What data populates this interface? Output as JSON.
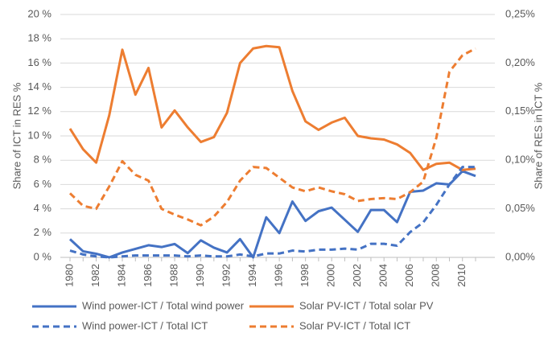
{
  "chart_data": {
    "type": "line",
    "y_label": "Share of ICT in RES %",
    "y2_label": "Share of RES in ICT %",
    "x": [
      1980,
      1981,
      1982,
      1983,
      1984,
      1985,
      1986,
      1987,
      1988,
      1989,
      1990,
      1991,
      1992,
      1993,
      1994,
      1995,
      1996,
      1997,
      1998,
      1999,
      2000,
      2001,
      2002,
      2003,
      2004,
      2005,
      2006,
      2007,
      2008,
      2009,
      2010,
      2011
    ],
    "xlim": [
      1980,
      2011
    ],
    "xticks": [
      1980,
      1982,
      1984,
      1986,
      1988,
      1990,
      1992,
      1994,
      1996,
      1998,
      2000,
      2002,
      2004,
      2006,
      2008,
      2010
    ],
    "ylim": [
      0,
      20
    ],
    "yticks": [
      {
        "value": 0,
        "label": "0 %"
      },
      {
        "value": 2,
        "label": "2 %"
      },
      {
        "value": 4,
        "label": "4 %"
      },
      {
        "value": 6,
        "label": "6 %"
      },
      {
        "value": 8,
        "label": "8 %"
      },
      {
        "value": 10,
        "label": "10 %"
      },
      {
        "value": 12,
        "label": "12 %"
      },
      {
        "value": 14,
        "label": "14 %"
      },
      {
        "value": 16,
        "label": "16 %"
      },
      {
        "value": 18,
        "label": "18 %"
      },
      {
        "value": 20,
        "label": "20 %"
      }
    ],
    "y2lim": [
      0,
      0.25
    ],
    "y2ticks": [
      {
        "value": 0,
        "label": "0,00%"
      },
      {
        "value": 0.05,
        "label": "0,05%"
      },
      {
        "value": 0.1,
        "label": "0,10%"
      },
      {
        "value": 0.15,
        "label": "0,15%"
      },
      {
        "value": 0.2,
        "label": "0,20%"
      },
      {
        "value": 0.25,
        "label": "0,25%"
      }
    ],
    "grid": true,
    "legend": "bottom",
    "series": [
      {
        "name": "Wind power-ICT / Total wind power",
        "color": "#4472c4",
        "dash": false,
        "values": [
          1.5,
          0.5,
          0.3,
          0.0,
          0.4,
          0.7,
          1.0,
          0.85,
          1.1,
          0.35,
          1.4,
          0.8,
          0.4,
          1.5,
          0.0,
          3.3,
          2.0,
          4.6,
          3.0,
          3.8,
          4.1,
          3.1,
          2.1,
          3.9,
          3.9,
          2.9,
          5.4,
          5.5,
          6.1,
          6.0,
          7.1,
          6.7
        ]
      },
      {
        "name": "Solar PV-ICT / Total solar PV",
        "color": "#ed7d31",
        "dash": false,
        "values": [
          10.6,
          8.9,
          7.8,
          11.7,
          17.1,
          13.4,
          15.6,
          10.7,
          12.1,
          10.7,
          9.5,
          9.9,
          11.9,
          16.0,
          17.2,
          17.4,
          17.3,
          13.7,
          11.2,
          10.5,
          11.1,
          11.5,
          10.0,
          9.8,
          9.7,
          9.3,
          8.6,
          7.2,
          7.7,
          7.8,
          7.2,
          7.3
        ]
      },
      {
        "name": "Wind power-ICT / Total ICT",
        "color": "#4472c4",
        "dash": true,
        "axis": "y2",
        "values": [
          0.007,
          0.003,
          0.001,
          0.0,
          0.001,
          0.002,
          0.002,
          0.002,
          0.002,
          0.001,
          0.002,
          0.001,
          0.001,
          0.003,
          0.001,
          0.004,
          0.004,
          0.007,
          0.006,
          0.008,
          0.008,
          0.009,
          0.008,
          0.014,
          0.014,
          0.012,
          0.026,
          0.036,
          0.054,
          0.075,
          0.093,
          0.093
        ]
      },
      {
        "name": "Solar PV-ICT / Total ICT",
        "color": "#ed7d31",
        "dash": true,
        "axis": "y2",
        "values": [
          0.066,
          0.053,
          0.05,
          0.073,
          0.099,
          0.085,
          0.079,
          0.05,
          0.044,
          0.039,
          0.033,
          0.042,
          0.057,
          0.079,
          0.093,
          0.092,
          0.082,
          0.072,
          0.068,
          0.072,
          0.068,
          0.065,
          0.058,
          0.06,
          0.061,
          0.06,
          0.067,
          0.078,
          0.123,
          0.191,
          0.208,
          0.215
        ]
      }
    ]
  }
}
